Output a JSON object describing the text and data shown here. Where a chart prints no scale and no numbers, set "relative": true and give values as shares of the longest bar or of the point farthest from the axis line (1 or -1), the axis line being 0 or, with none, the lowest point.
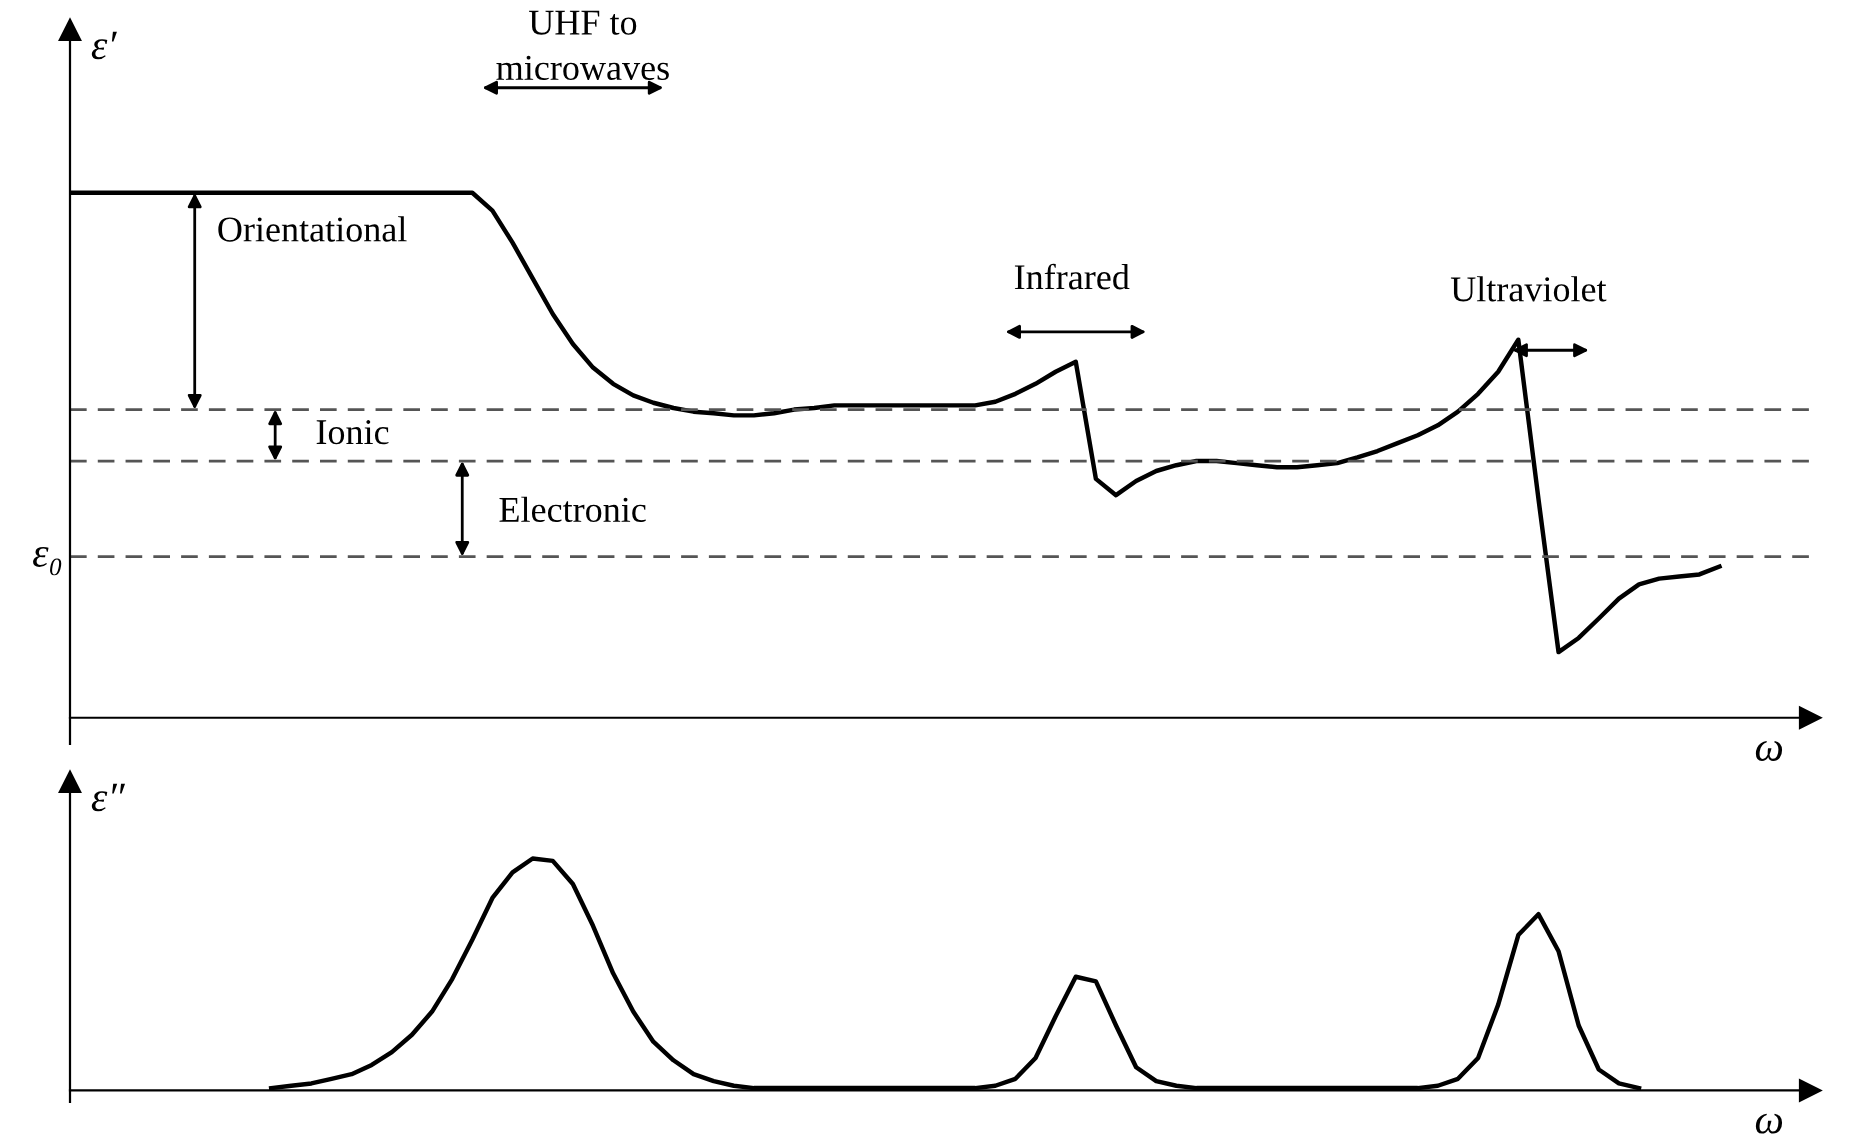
{
  "chart_data": [
    {
      "type": "line",
      "relative": true,
      "grid": false,
      "legend": false,
      "ylabel": "ε′",
      "xlabel": "ω",
      "categories": [
        null,
        null,
        null,
        null,
        null,
        null,
        null,
        null,
        null,
        null,
        null,
        null,
        null,
        null,
        null,
        null,
        null,
        null,
        null,
        null,
        null,
        null,
        null,
        null,
        null,
        null,
        null,
        null,
        null,
        null,
        null,
        null,
        null,
        null,
        null,
        null,
        null,
        null,
        null,
        null,
        null,
        null,
        null,
        null,
        null,
        null,
        null,
        null,
        null,
        null,
        null,
        null,
        null,
        null,
        null,
        null,
        null,
        null,
        null,
        null,
        null,
        null,
        null,
        null,
        null,
        null,
        null,
        null,
        null,
        null,
        null,
        null,
        null,
        null,
        null,
        null,
        null,
        null,
        null,
        null,
        null,
        null,
        null,
        null,
        null,
        null,
        null
      ],
      "series": [
        {
          "color": "#000000",
          "line_style": "solid",
          "values": [
            1,
            1,
            1,
            1,
            1,
            1,
            1,
            1,
            1,
            1,
            1,
            1,
            1,
            1,
            1,
            1,
            1,
            1,
            1,
            1,
            1,
            0.966,
            0.905,
            0.837,
            0.769,
            0.712,
            0.667,
            0.636,
            0.614,
            0.6,
            0.59,
            0.583,
            0.58,
            0.576,
            0.576,
            0.58,
            0.587,
            0.59,
            0.595,
            0.595,
            0.595,
            0.595,
            0.595,
            0.595,
            0.595,
            0.595,
            0.602,
            0.617,
            0.636,
            0.659,
            0.678,
            0.455,
            0.424,
            0.451,
            0.47,
            0.481,
            0.489,
            0.489,
            0.485,
            0.481,
            0.477,
            0.477,
            0.481,
            0.485,
            0.496,
            0.508,
            0.523,
            0.538,
            0.557,
            0.583,
            0.617,
            0.659,
            0.72,
            0.417,
            0.125,
            0.152,
            0.189,
            0.227,
            0.254,
            0.265,
            0.269,
            0.273,
            0.288,
            null,
            null,
            null,
            null
          ]
        }
      ],
      "ref_lines": [
        {
          "axis": "y",
          "value": 0.587,
          "color": "#555555",
          "line_style": "dashed"
        },
        {
          "axis": "y",
          "value": 0.489,
          "color": "#555555",
          "line_style": "dashed"
        },
        {
          "axis": "y",
          "value": 0.307,
          "label": "ε₀",
          "color": "#555555",
          "line_style": "dashed"
        }
      ],
      "annotations": [
        "UHF to\nmicrowaves",
        "Orientational",
        "Ionic",
        "Electronic",
        "Infrared",
        "Ultraviolet"
      ]
    },
    {
      "type": "line",
      "relative": true,
      "grid": false,
      "legend": false,
      "ylabel": "ε″",
      "xlabel": "ω",
      "categories": [
        null,
        null,
        null,
        null,
        null,
        null,
        null,
        null,
        null,
        null,
        null,
        null,
        null,
        null,
        null,
        null,
        null,
        null,
        null,
        null,
        null,
        null,
        null,
        null,
        null,
        null,
        null,
        null,
        null,
        null,
        null,
        null,
        null,
        null,
        null,
        null,
        null,
        null,
        null,
        null,
        null,
        null,
        null,
        null,
        null,
        null,
        null,
        null,
        null,
        null,
        null,
        null,
        null,
        null,
        null,
        null,
        null,
        null,
        null,
        null,
        null,
        null,
        null,
        null,
        null,
        null,
        null,
        null,
        null,
        null,
        null,
        null,
        null,
        null,
        null,
        null,
        null,
        null,
        null,
        null,
        null,
        null,
        null,
        null,
        null,
        null,
        null
      ],
      "series": [
        {
          "color": "#000000",
          "line_style": "solid",
          "values": [
            null,
            null,
            null,
            null,
            null,
            null,
            null,
            null,
            null,
            null,
            0.01,
            0.02,
            0.03,
            0.05,
            0.07,
            0.11,
            0.165,
            0.24,
            0.34,
            0.48,
            0.65,
            0.83,
            0.94,
            1,
            0.99,
            0.89,
            0.71,
            0.505,
            0.34,
            0.21,
            0.13,
            0.07,
            0.04,
            0.02,
            0.01,
            0.01,
            0.01,
            0.01,
            0.01,
            0.01,
            0.01,
            0.01,
            0.01,
            0.01,
            0.01,
            0.01,
            0.02,
            0.05,
            0.14,
            0.32,
            0.49,
            0.47,
            0.28,
            0.1,
            0.04,
            0.02,
            0.01,
            0.01,
            0.01,
            0.01,
            0.01,
            0.01,
            0.01,
            0.01,
            0.01,
            0.01,
            0.01,
            0.01,
            0.02,
            0.05,
            0.14,
            0.37,
            0.67,
            0.76,
            0.6,
            0.28,
            0.09,
            0.03,
            0.01,
            null,
            null,
            null,
            null,
            null,
            null,
            null,
            null
          ]
        }
      ]
    }
  ]
}
